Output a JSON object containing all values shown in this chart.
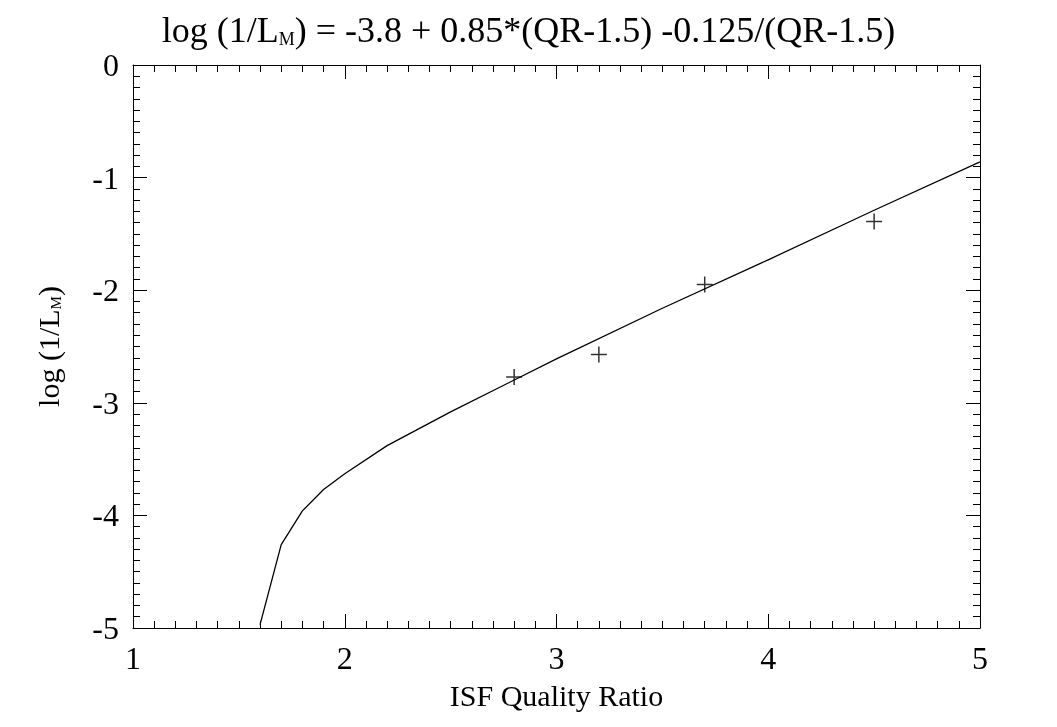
{
  "chart_data": {
    "type": "scatter",
    "title": "log (1/L$_{M}$) = -3.8 + 0.85*(QR-1.5) -0.125/(QR-1.5)",
    "xlabel": "ISF Quality Ratio",
    "ylabel": "log (1/L$_{M}$)",
    "xlim": [
      1,
      5
    ],
    "xticks": [
      1,
      2,
      3,
      4,
      5
    ],
    "ylim": [
      -5,
      0
    ],
    "yticks": [
      -5,
      -4,
      -3,
      -2,
      -1,
      0
    ],
    "grid": false,
    "series": [
      {
        "marker": "cross",
        "color": "#000000",
        "x": [
          2.8,
          3.2,
          3.7,
          4.5
        ],
        "values": [
          -2.77,
          -2.57,
          -1.95,
          -1.39
        ]
      },
      {
        "type": "line",
        "marker": "none",
        "line_style": "solid",
        "color": "#000000",
        "x": [
          1.6,
          1.7,
          1.8,
          1.9,
          2.0,
          2.2,
          2.5,
          3.0,
          3.5,
          4.0,
          4.5,
          5.0
        ],
        "values": [
          -4.97,
          -4.26,
          -3.96,
          -3.77,
          -3.63,
          -3.38,
          -3.08,
          -2.61,
          -2.16,
          -1.73,
          -1.29,
          -0.86
        ]
      }
    ]
  }
}
